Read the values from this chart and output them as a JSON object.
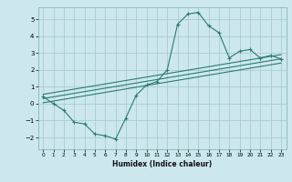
{
  "xlabel": "Humidex (Indice chaleur)",
  "bg_color": "#cce8ee",
  "grid_color": "#aacccc",
  "line_color": "#2a7a70",
  "xlim": [
    -0.5,
    23.5
  ],
  "ylim": [
    -2.7,
    5.7
  ],
  "xticks": [
    0,
    1,
    2,
    3,
    4,
    5,
    6,
    7,
    8,
    9,
    10,
    11,
    12,
    13,
    14,
    15,
    16,
    17,
    18,
    19,
    20,
    21,
    22,
    23
  ],
  "yticks": [
    -2,
    -1,
    0,
    1,
    2,
    3,
    4,
    5
  ],
  "curve_x": [
    0,
    1,
    2,
    3,
    4,
    5,
    6,
    7,
    8,
    9,
    10,
    11,
    12,
    13,
    14,
    15,
    16,
    17,
    18,
    19,
    20,
    21,
    22,
    23
  ],
  "curve_y": [
    0.4,
    0.0,
    -0.4,
    -1.1,
    -1.2,
    -1.8,
    -1.9,
    -2.1,
    -0.85,
    0.5,
    1.1,
    1.3,
    2.0,
    4.7,
    5.3,
    5.4,
    4.6,
    4.2,
    2.7,
    3.1,
    3.2,
    2.7,
    2.85,
    2.65
  ],
  "line1_x": [
    0,
    23
  ],
  "line1_y": [
    0.3,
    2.65
  ],
  "line2_x": [
    0,
    23
  ],
  "line2_y": [
    0.55,
    2.9
  ],
  "line3_x": [
    0,
    23
  ],
  "line3_y": [
    0.05,
    2.4
  ]
}
